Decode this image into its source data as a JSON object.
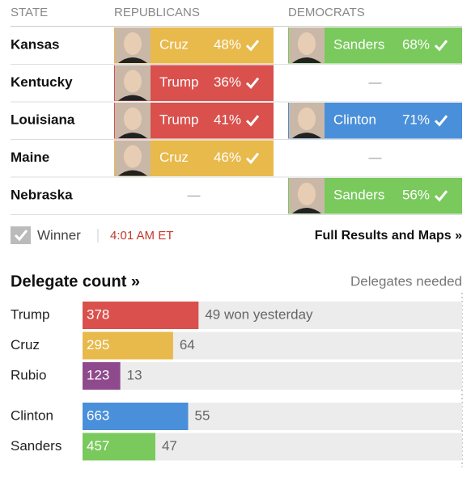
{
  "header": {
    "state": "STATE",
    "republicans": "REPUBLICANS",
    "democrats": "DEMOCRATS"
  },
  "no_result": "—",
  "rows": [
    {
      "state": "Kansas",
      "rep": {
        "name": "Cruz",
        "pct": "48%",
        "color": "#e8b94b"
      },
      "dem": {
        "name": "Sanders",
        "pct": "68%",
        "color": "#79c95c"
      }
    },
    {
      "state": "Kentucky",
      "rep": {
        "name": "Trump",
        "pct": "36%",
        "color": "#d9504c"
      },
      "dem": null
    },
    {
      "state": "Louisiana",
      "rep": {
        "name": "Trump",
        "pct": "41%",
        "color": "#d9504c"
      },
      "dem": {
        "name": "Clinton",
        "pct": "71%",
        "color": "#4a8fd9"
      }
    },
    {
      "state": "Maine",
      "rep": {
        "name": "Cruz",
        "pct": "46%",
        "color": "#e8b94b"
      },
      "dem": null
    },
    {
      "state": "Nebraska",
      "rep": null,
      "dem": {
        "name": "Sanders",
        "pct": "56%",
        "color": "#79c95c"
      }
    }
  ],
  "legend": {
    "winner": "Winner",
    "time": "4:01 AM ET",
    "link": "Full Results and Maps »"
  },
  "delegates": {
    "title": "Delegate count »",
    "needed_label": "Delegates needed",
    "groups": [
      {
        "xlim": [
          0,
          1237
        ],
        "rows": [
          {
            "name": "Trump",
            "value": 378,
            "won_label": "49 won yesterday",
            "color": "#d9504c"
          },
          {
            "name": "Cruz",
            "value": 295,
            "won_label": "64",
            "color": "#e8b94b"
          },
          {
            "name": "Rubio",
            "value": 123,
            "won_label": "13",
            "color": "#8e4a8c"
          }
        ]
      },
      {
        "xlim": [
          0,
          2383
        ],
        "rows": [
          {
            "name": "Clinton",
            "value": 663,
            "won_label": "55",
            "color": "#4a8fd9"
          },
          {
            "name": "Sanders",
            "value": 457,
            "won_label": "47",
            "color": "#79c95c"
          }
        ]
      }
    ]
  }
}
